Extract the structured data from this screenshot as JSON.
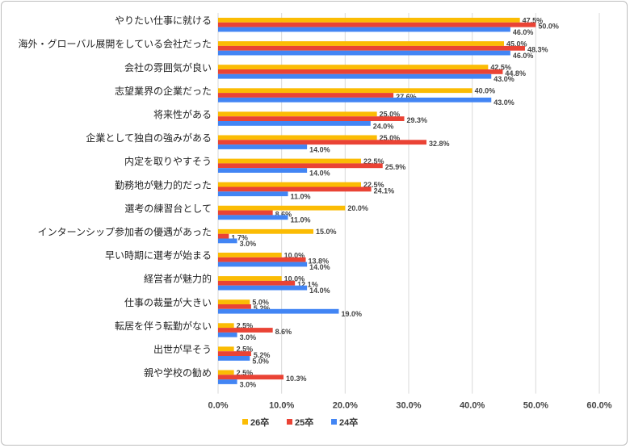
{
  "chart_data": {
    "type": "bar",
    "orientation": "horizontal",
    "categories": [
      "やりたい仕事に就ける",
      "海外・グローバル展開をしている会社だった",
      "会社の雰囲気が良い",
      "志望業界の企業だった",
      "将来性がある",
      "企業として独自の強みがある",
      "内定を取りやすそう",
      "勤務地が魅力的だった",
      "選考の練習台として",
      "インターンシップ参加者の優遇があった",
      "早い時期に選考が始まる",
      "経営者が魅力的",
      "仕事の裁量が大きい",
      "転居を伴う転勤がない",
      "出世が早そう",
      "親や学校の勧め"
    ],
    "series": [
      {
        "name": "26卒",
        "color": "#fbbc04",
        "values": [
          47.5,
          45.0,
          42.5,
          40.0,
          25.0,
          25.0,
          22.5,
          22.5,
          20.0,
          15.0,
          10.0,
          10.0,
          5.0,
          2.5,
          2.5,
          2.5
        ]
      },
      {
        "name": "25卒",
        "color": "#ea4335",
        "values": [
          50.0,
          48.3,
          44.8,
          27.6,
          29.3,
          32.8,
          25.9,
          24.1,
          8.6,
          1.7,
          13.8,
          12.1,
          5.2,
          8.6,
          5.2,
          10.3
        ]
      },
      {
        "name": "24卒",
        "color": "#4285f4",
        "values": [
          46.0,
          46.0,
          43.0,
          43.0,
          24.0,
          14.0,
          14.0,
          11.0,
          11.0,
          3.0,
          14.0,
          14.0,
          19.0,
          3.0,
          5.0,
          3.0
        ]
      }
    ],
    "xlim": [
      0,
      60
    ],
    "xticks": [
      "0.0%",
      "10.0%",
      "20.0%",
      "30.0%",
      "40.0%",
      "50.0%",
      "60.0%"
    ],
    "grid": true,
    "legend": "bottom",
    "data_labels": true
  }
}
